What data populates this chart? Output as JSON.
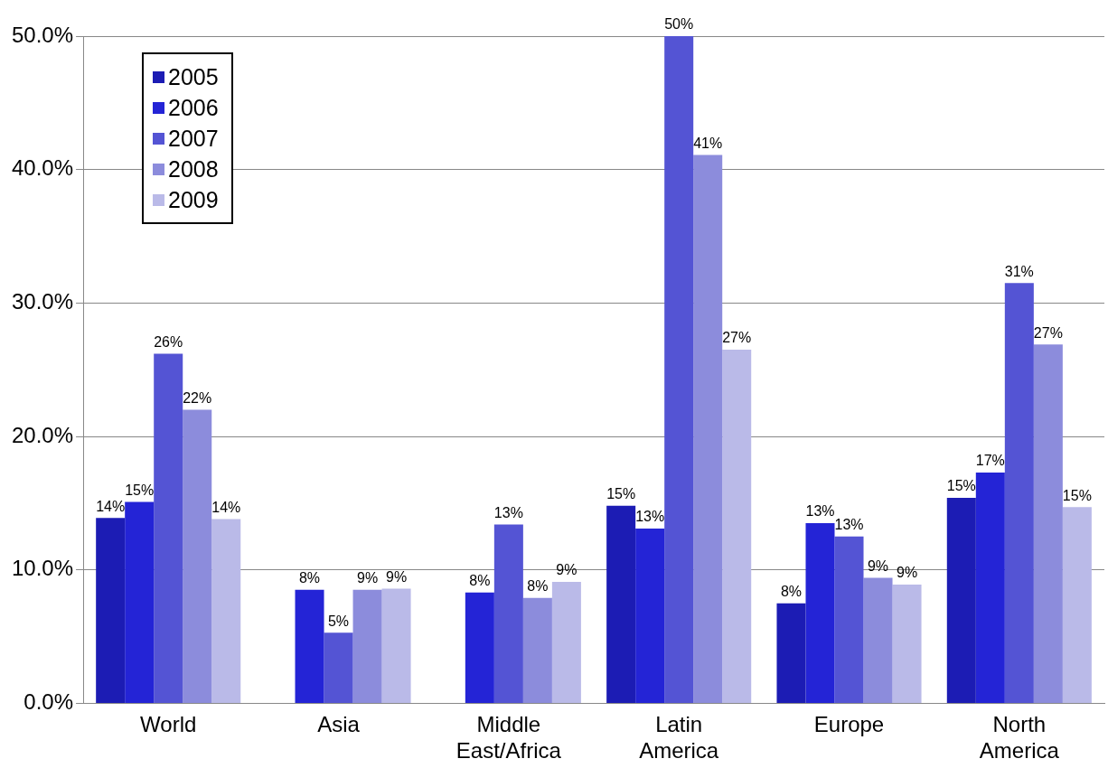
{
  "chart_data": {
    "type": "bar",
    "categories": [
      "World",
      "Asia",
      "Middle East/Africa",
      "Latin America",
      "Europe",
      "North America"
    ],
    "series": [
      {
        "name": "2005",
        "color": "#1c1cb4",
        "values": [
          13.9,
          null,
          null,
          14.8,
          7.5,
          15.4
        ],
        "value_labels": [
          "14%",
          null,
          null,
          "15%",
          "8%",
          "15%"
        ]
      },
      {
        "name": "2006",
        "color": "#2424d6",
        "values": [
          15.1,
          8.5,
          8.3,
          13.1,
          13.5,
          17.3
        ],
        "value_labels": [
          "15%",
          "8%",
          "8%",
          "13%",
          "13%",
          "17%"
        ]
      },
      {
        "name": "2007",
        "color": "#5454d4",
        "values": [
          26.2,
          5.3,
          13.4,
          50.0,
          12.5,
          31.5
        ],
        "value_labels": [
          "26%",
          "5%",
          "13%",
          "50%",
          "13%",
          "31%"
        ]
      },
      {
        "name": "2008",
        "color": "#8c8cdc",
        "values": [
          22.0,
          8.5,
          7.9,
          41.1,
          9.4,
          26.9
        ],
        "value_labels": [
          "22%",
          "9%",
          "8%",
          "41%",
          "9%",
          "27%"
        ]
      },
      {
        "name": "2009",
        "color": "#babae8",
        "values": [
          13.8,
          8.6,
          9.1,
          26.5,
          8.9,
          14.7
        ],
        "value_labels": [
          "14%",
          "9%",
          "9%",
          "27%",
          "9%",
          "15%"
        ]
      }
    ],
    "ylim": [
      0,
      50
    ],
    "yticks": [
      {
        "value": 0,
        "label": "0.0%"
      },
      {
        "value": 10,
        "label": "10.0%"
      },
      {
        "value": 20,
        "label": "20.0%"
      },
      {
        "value": 30,
        "label": "30.0%"
      },
      {
        "value": 40,
        "label": "40.0%"
      },
      {
        "value": 50,
        "label": "50.0%"
      }
    ],
    "grid": "y",
    "legend": "top left"
  }
}
